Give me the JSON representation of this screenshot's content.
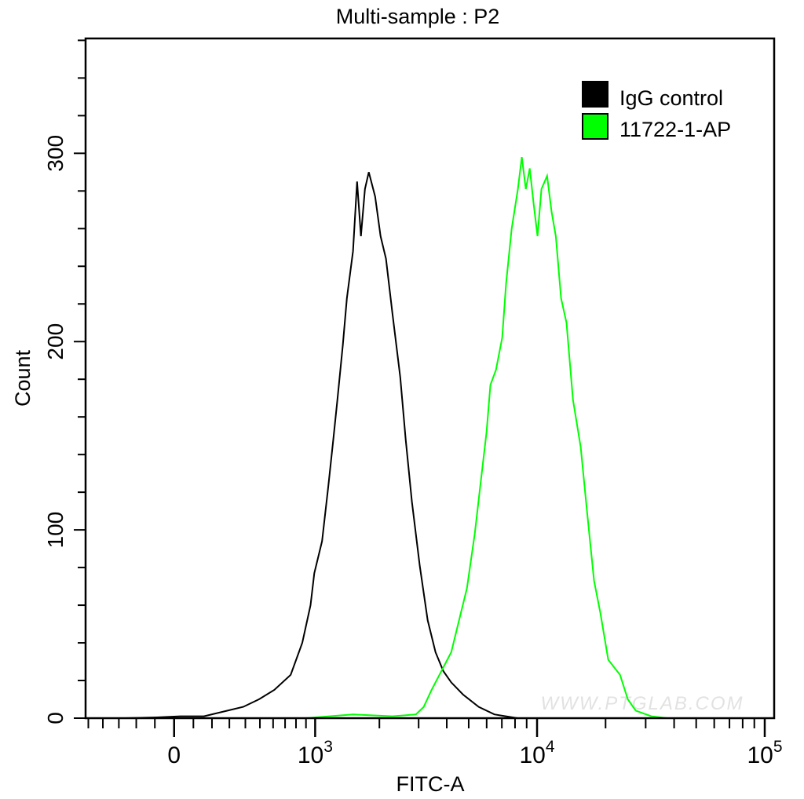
{
  "chart_data": {
    "type": "line",
    "title": "Multi-sample : P2",
    "xlabel": "FITC-A",
    "ylabel": "Count",
    "x_scale": "biexponential",
    "xlim": [
      -520,
      110000
    ],
    "ylim": [
      0,
      361
    ],
    "x_tick_labels": [
      {
        "value": 0,
        "base": "0",
        "exp": ""
      },
      {
        "value": 1000,
        "base": "10",
        "exp": "3"
      },
      {
        "value": 10000,
        "base": "10",
        "exp": "4"
      },
      {
        "value": 100000,
        "base": "10",
        "exp": "5"
      }
    ],
    "y_ticks": [
      0,
      100,
      200,
      300
    ],
    "y_tick_labels": [
      "0",
      "100",
      "200",
      "300"
    ],
    "grid": false,
    "legend_position": "top-right",
    "watermark": "WWW.PTGLAB.COM",
    "series": [
      {
        "name": "IgG control",
        "color": "#000000",
        "x": [
          -261,
          -90,
          32,
          156,
          289,
          386,
          493,
          610,
          750,
          862,
          949,
          990,
          1081,
          1158,
          1224,
          1280,
          1357,
          1418,
          1515,
          1581,
          1647,
          1719,
          1790,
          1913,
          2025,
          2142,
          2290,
          2484,
          2627,
          2800,
          3035,
          3290,
          3565,
          3861,
          4187,
          4723,
          5534,
          6487,
          8211
        ],
        "y": [
          0,
          0.4,
          1,
          1,
          4,
          6,
          10,
          15,
          23,
          40,
          60,
          77,
          94,
          123,
          148,
          169,
          198,
          223,
          248,
          285,
          256,
          281,
          290,
          277,
          256,
          244,
          215,
          181,
          148,
          115,
          81,
          52,
          35,
          25,
          19,
          12.5,
          6,
          2,
          0
        ]
      },
      {
        "name": "11722-1-AP",
        "color": "#00ff00",
        "x": [
          902,
          1173,
          1515,
          2290,
          2917,
          3162,
          3427,
          3713,
          4187,
          4534,
          4911,
          5319,
          5620,
          5993,
          6232,
          6594,
          7023,
          7308,
          7732,
          8237,
          8568,
          8925,
          9282,
          9665,
          10047,
          10455,
          11067,
          11577,
          12087,
          12750,
          13464,
          14382,
          15555,
          16575,
          17800,
          18972,
          20553,
          23154,
          25041,
          27132,
          31773,
          37230
        ],
        "y": [
          0,
          1,
          2,
          1,
          2,
          6,
          15,
          23,
          35,
          52,
          69,
          98,
          123,
          152,
          177,
          185,
          202,
          231,
          260,
          281,
          298,
          281,
          292,
          273,
          256,
          281,
          288,
          269,
          256,
          223,
          210,
          169,
          144,
          110,
          73,
          56,
          31,
          23,
          10,
          4,
          1,
          0
        ]
      }
    ]
  }
}
